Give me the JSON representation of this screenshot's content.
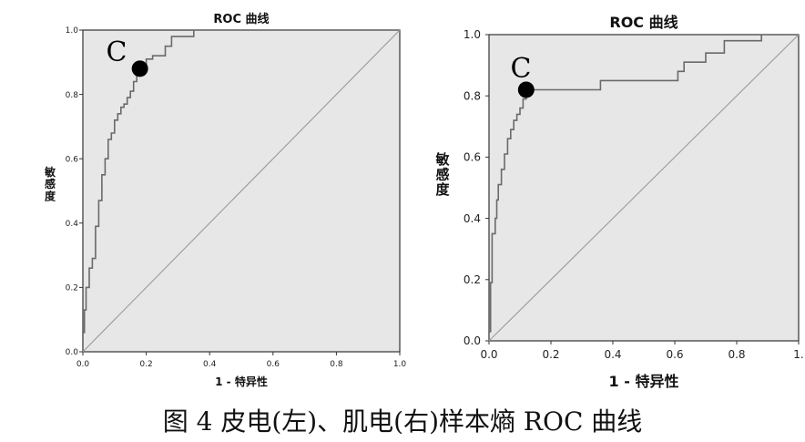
{
  "caption": "图 4 皮电(左)、肌电(右)样本熵 ROC 曲线",
  "colors": {
    "plot_bg": "#e7e7e7",
    "curve": "#6a6a6a",
    "diagonal": "#9a9a9a",
    "frame": "#333333",
    "point": "#000000"
  },
  "chart_data": [
    {
      "type": "line",
      "title": "ROC 曲线",
      "xlabel": "1 - 特异性",
      "ylabel": "敏感度",
      "xlim": [
        0,
        1
      ],
      "ylim": [
        0,
        1
      ],
      "x_ticks": [
        "0.0",
        "0.2",
        "0.4",
        "0.6",
        "0.8",
        "1.0"
      ],
      "y_ticks": [
        "0.0",
        "0.2",
        "0.4",
        "0.6",
        "0.8",
        "1.0"
      ],
      "grid": false,
      "series": [
        {
          "x": [
            0,
            0,
            0.005,
            0.005,
            0.01,
            0.01,
            0.02,
            0.02,
            0.03,
            0.03,
            0.04,
            0.04,
            0.05,
            0.05,
            0.06,
            0.06,
            0.07,
            0.07,
            0.08,
            0.08,
            0.09,
            0.09,
            0.1,
            0.1,
            0.11,
            0.11,
            0.12,
            0.12,
            0.13,
            0.13,
            0.14,
            0.14,
            0.15,
            0.15,
            0.16,
            0.16,
            0.17,
            0.17,
            0.18,
            0.18,
            0.2,
            0.2,
            0.22,
            0.22,
            0.26,
            0.26,
            0.28,
            0.28,
            0.35,
            0.35,
            1.0
          ],
          "y": [
            0,
            0.06,
            0.06,
            0.13,
            0.13,
            0.2,
            0.2,
            0.26,
            0.26,
            0.29,
            0.29,
            0.39,
            0.39,
            0.47,
            0.47,
            0.55,
            0.55,
            0.6,
            0.6,
            0.66,
            0.66,
            0.68,
            0.68,
            0.72,
            0.72,
            0.74,
            0.74,
            0.76,
            0.76,
            0.77,
            0.77,
            0.79,
            0.79,
            0.81,
            0.81,
            0.84,
            0.84,
            0.86,
            0.86,
            0.89,
            0.89,
            0.91,
            0.91,
            0.92,
            0.92,
            0.95,
            0.95,
            0.98,
            0.98,
            1.0,
            1.0
          ]
        },
        {
          "x": [
            0,
            1
          ],
          "y": [
            0,
            1
          ]
        }
      ],
      "annotations": [
        {
          "label": "C",
          "x": 0.18,
          "y": 0.88
        }
      ]
    },
    {
      "type": "line",
      "title": "ROC 曲线",
      "xlabel": "1 - 特异性",
      "ylabel": "敏感度",
      "xlim": [
        0,
        1
      ],
      "ylim": [
        0,
        1
      ],
      "x_ticks": [
        "0.0",
        "0.2",
        "0.4",
        "0.6",
        "0.8",
        "1."
      ],
      "y_ticks": [
        "0.0",
        "0.2",
        "0.4",
        "0.6",
        "0.8",
        "1.0"
      ],
      "grid": false,
      "series": [
        {
          "x": [
            0,
            0,
            0.005,
            0.005,
            0.01,
            0.01,
            0.02,
            0.02,
            0.025,
            0.025,
            0.03,
            0.03,
            0.04,
            0.04,
            0.05,
            0.05,
            0.06,
            0.06,
            0.07,
            0.07,
            0.08,
            0.08,
            0.09,
            0.09,
            0.1,
            0.1,
            0.11,
            0.11,
            0.12,
            0.12,
            0.36,
            0.36,
            0.61,
            0.61,
            0.63,
            0.63,
            0.7,
            0.7,
            0.76,
            0.76,
            0.88,
            0.88,
            1.0
          ],
          "y": [
            0,
            0.03,
            0.03,
            0.19,
            0.19,
            0.35,
            0.35,
            0.4,
            0.4,
            0.46,
            0.46,
            0.51,
            0.51,
            0.56,
            0.56,
            0.61,
            0.61,
            0.66,
            0.66,
            0.69,
            0.69,
            0.72,
            0.72,
            0.74,
            0.74,
            0.76,
            0.76,
            0.79,
            0.79,
            0.82,
            0.82,
            0.85,
            0.85,
            0.88,
            0.88,
            0.91,
            0.91,
            0.94,
            0.94,
            0.98,
            0.98,
            1.0,
            1.0
          ]
        },
        {
          "x": [
            0,
            1
          ],
          "y": [
            0,
            1
          ]
        }
      ],
      "annotations": [
        {
          "label": "C",
          "x": 0.12,
          "y": 0.82
        }
      ]
    }
  ]
}
